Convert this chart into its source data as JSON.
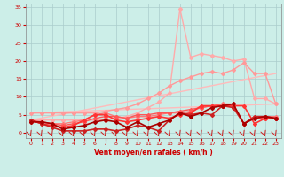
{
  "background_color": "#cceee8",
  "grid_color": "#aacccc",
  "xlabel": "Vent moyen/en rafales ( km/h )",
  "xlabel_color": "#cc0000",
  "tick_color": "#cc0000",
  "xlim": [
    -0.5,
    23.5
  ],
  "ylim": [
    -1.5,
    36
  ],
  "yticks": [
    0,
    5,
    10,
    15,
    20,
    25,
    30,
    35
  ],
  "xticks": [
    0,
    1,
    2,
    3,
    4,
    5,
    6,
    7,
    8,
    9,
    10,
    11,
    12,
    13,
    14,
    15,
    16,
    17,
    18,
    19,
    20,
    21,
    22,
    23
  ],
  "series": [
    {
      "x": [
        0,
        23
      ],
      "y": [
        3.5,
        16.5
      ],
      "color": "#ffbbbb",
      "linewidth": 1.0,
      "marker": null,
      "markersize": 0
    },
    {
      "x": [
        0,
        23
      ],
      "y": [
        5.5,
        8.0
      ],
      "color": "#ffbbbb",
      "linewidth": 1.0,
      "marker": null,
      "markersize": 0
    },
    {
      "x": [
        0,
        1,
        2,
        3,
        4,
        5,
        6,
        7,
        8,
        9,
        10,
        11,
        12,
        13,
        14,
        15,
        16,
        17,
        18,
        19,
        20,
        21,
        22,
        23
      ],
      "y": [
        3.5,
        3.5,
        3.5,
        3.5,
        3.5,
        3.5,
        3.5,
        3.5,
        4.0,
        4.5,
        5.5,
        7.0,
        8.5,
        11.0,
        34.5,
        21.0,
        22.0,
        21.5,
        21.0,
        20.0,
        20.5,
        9.5,
        9.5,
        8.0
      ],
      "color": "#ffaaaa",
      "linewidth": 1.0,
      "marker": "D",
      "markersize": 2.0
    },
    {
      "x": [
        0,
        1,
        2,
        3,
        4,
        5,
        6,
        7,
        8,
        9,
        10,
        11,
        12,
        13,
        14,
        15,
        16,
        17,
        18,
        19,
        20,
        21,
        22,
        23
      ],
      "y": [
        5.5,
        5.5,
        5.5,
        5.5,
        5.5,
        5.5,
        5.5,
        6.0,
        6.5,
        7.0,
        8.0,
        9.5,
        11.0,
        13.0,
        14.5,
        15.5,
        16.5,
        17.0,
        16.5,
        17.5,
        19.5,
        16.5,
        16.5,
        8.0
      ],
      "color": "#ff9999",
      "linewidth": 1.0,
      "marker": "D",
      "markersize": 2.0
    },
    {
      "x": [
        0,
        1,
        2,
        3,
        4,
        5,
        6,
        7,
        8,
        9,
        10,
        11,
        12,
        13,
        14,
        15,
        16,
        17,
        18,
        19,
        20,
        21,
        22,
        23
      ],
      "y": [
        3.5,
        3.0,
        2.5,
        2.5,
        3.0,
        3.5,
        5.0,
        5.5,
        4.5,
        4.0,
        4.5,
        4.5,
        5.0,
        5.5,
        5.5,
        6.0,
        7.0,
        7.5,
        8.0,
        8.0,
        2.5,
        4.5,
        4.5,
        4.5
      ],
      "color": "#ff7777",
      "linewidth": 1.0,
      "marker": "D",
      "markersize": 2.0
    },
    {
      "x": [
        0,
        1,
        2,
        3,
        4,
        5,
        6,
        7,
        8,
        9,
        10,
        11,
        12,
        13,
        14,
        15,
        16,
        17,
        18,
        19,
        20,
        21,
        22,
        23
      ],
      "y": [
        3.0,
        3.0,
        2.5,
        2.0,
        2.5,
        3.0,
        4.0,
        4.5,
        4.5,
        4.0,
        5.0,
        5.0,
        5.5,
        5.5,
        6.0,
        6.5,
        7.0,
        7.5,
        7.5,
        7.5,
        2.5,
        4.0,
        4.0,
        4.0
      ],
      "color": "#ff5555",
      "linewidth": 1.0,
      "marker": "D",
      "markersize": 2.0
    },
    {
      "x": [
        0,
        1,
        2,
        3,
        4,
        5,
        6,
        7,
        8,
        9,
        10,
        11,
        12,
        13,
        14,
        15,
        16,
        17,
        18,
        19,
        20,
        21,
        22,
        23
      ],
      "y": [
        3.5,
        2.5,
        2.0,
        1.5,
        2.0,
        3.5,
        5.0,
        5.0,
        3.5,
        3.0,
        3.5,
        4.0,
        4.5,
        4.0,
        5.0,
        5.5,
        7.5,
        7.5,
        7.5,
        7.5,
        7.5,
        2.5,
        4.0,
        4.0
      ],
      "color": "#ff3333",
      "linewidth": 1.2,
      "marker": "D",
      "markersize": 2.0
    },
    {
      "x": [
        0,
        1,
        2,
        3,
        4,
        5,
        6,
        7,
        8,
        9,
        10,
        11,
        12,
        13,
        14,
        15,
        16,
        17,
        18,
        19,
        20,
        21,
        22,
        23
      ],
      "y": [
        3.5,
        2.5,
        1.5,
        0.5,
        0.5,
        0.5,
        1.0,
        1.0,
        0.5,
        1.0,
        2.0,
        1.5,
        0.5,
        3.5,
        5.5,
        5.0,
        5.5,
        5.0,
        7.5,
        7.0,
        2.5,
        4.5,
        4.5,
        4.0
      ],
      "color": "#cc2222",
      "linewidth": 1.2,
      "marker": "D",
      "markersize": 2.0
    },
    {
      "x": [
        0,
        1,
        2,
        3,
        4,
        5,
        6,
        7,
        8,
        9,
        10,
        11,
        12,
        13,
        14,
        15,
        16,
        17,
        18,
        19,
        20,
        21,
        22,
        23
      ],
      "y": [
        3.0,
        3.0,
        2.5,
        1.0,
        1.5,
        2.0,
        3.0,
        3.5,
        3.0,
        1.5,
        3.0,
        1.5,
        2.5,
        3.5,
        5.5,
        4.5,
        5.5,
        7.0,
        7.5,
        8.0,
        2.5,
        4.0,
        4.5,
        4.0
      ],
      "color": "#aa0000",
      "linewidth": 1.2,
      "marker": "D",
      "markersize": 2.0
    }
  ],
  "figsize": [
    3.2,
    2.0
  ],
  "dpi": 100
}
